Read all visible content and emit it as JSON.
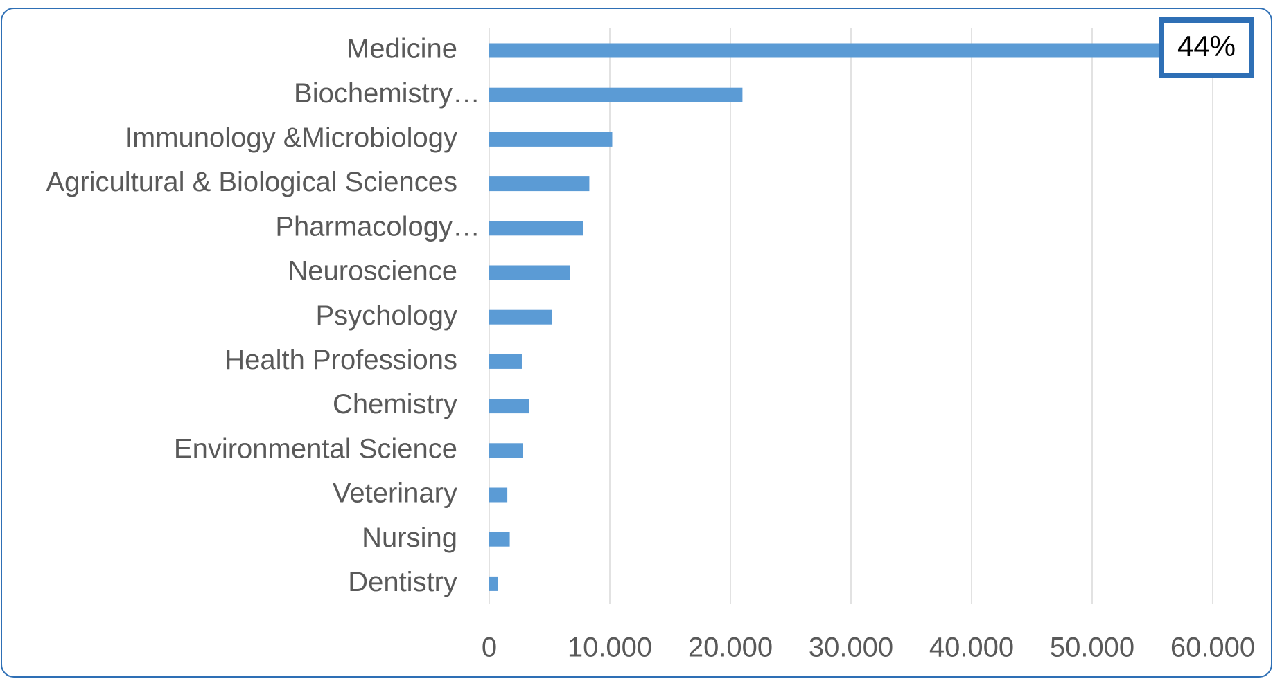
{
  "chart_data": {
    "type": "bar",
    "orientation": "horizontal",
    "categories": [
      "Medicine",
      "Biochemistry…",
      "Immunology &Microbiology",
      "Agricultural & Biological Sciences",
      "Pharmacology…",
      "Neuroscience",
      "Psychology",
      "Health Professions",
      "Chemistry",
      "Environmental Science",
      "Veterinary",
      "Nursing",
      "Dentistry"
    ],
    "values": [
      56000,
      21000,
      10200,
      8300,
      7800,
      6700,
      5200,
      2700,
      3300,
      2800,
      1500,
      1700,
      700
    ],
    "color": "#5b9bd5",
    "xlim": [
      0,
      60000
    ],
    "xticks": [
      0,
      {
        "value": 10000,
        "label": "10.000"
      },
      {
        "value": 20000,
        "label": "20.000"
      },
      {
        "value": 30000,
        "label": "30.000"
      },
      {
        "value": 40000,
        "label": "40.000"
      },
      {
        "value": 50000,
        "label": "50.000"
      },
      {
        "value": 60000,
        "label": "60.000"
      }
    ],
    "grid": true,
    "annotation": "44%"
  }
}
